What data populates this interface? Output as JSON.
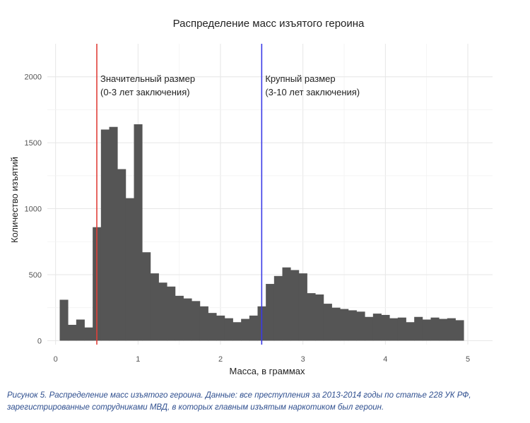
{
  "chart_data": {
    "type": "bar",
    "title": "Распределение масс изъятого героина",
    "xlabel": "Масса, в граммах",
    "ylabel": "Количество изъятий",
    "xlim": [
      -0.1,
      5.3
    ],
    "ylim": [
      -30,
      2250
    ],
    "xticks": [
      0,
      1,
      2,
      3,
      4,
      5
    ],
    "yticks": [
      0,
      500,
      1000,
      1500,
      2000
    ],
    "grid": true,
    "bin_width": 0.1,
    "x": [
      0.1,
      0.2,
      0.3,
      0.4,
      0.5,
      0.6,
      0.7,
      0.8,
      0.9,
      1.0,
      1.1,
      1.2,
      1.3,
      1.4,
      1.5,
      1.6,
      1.7,
      1.8,
      1.9,
      2.0,
      2.1,
      2.2,
      2.3,
      2.4,
      2.5,
      2.6,
      2.7,
      2.8,
      2.9,
      3.0,
      3.1,
      3.2,
      3.3,
      3.4,
      3.5,
      3.6,
      3.7,
      3.8,
      3.9,
      4.0,
      4.1,
      4.2,
      4.3,
      4.4,
      4.5,
      4.6,
      4.7,
      4.8,
      4.9
    ],
    "values": [
      310,
      120,
      160,
      100,
      860,
      1600,
      1620,
      1300,
      1080,
      1640,
      670,
      510,
      440,
      410,
      340,
      320,
      300,
      260,
      210,
      190,
      170,
      140,
      165,
      190,
      260,
      430,
      490,
      555,
      535,
      510,
      360,
      350,
      280,
      250,
      240,
      230,
      220,
      180,
      205,
      195,
      170,
      175,
      140,
      180,
      160,
      175,
      165,
      170,
      155
    ],
    "bar_color": "#555555",
    "reference_lines": [
      {
        "x": 0.5,
        "color": "#e0403a",
        "label_line1": "Значительный размер",
        "label_line2": "(0-3 лет заключения)"
      },
      {
        "x": 2.5,
        "color": "#3b3be6",
        "label_line1": "Крупный размер",
        "label_line2": "(3-10 лет заключения)"
      }
    ]
  },
  "caption": {
    "line1": "Рисунок 5. Распределение масс изъятого героина. Данные: все преступления за 2013-2014 годы по статье 228 УК РФ,",
    "line2": "зарегистрированные сотрудниками МВД, в которых главным изъятым наркотиком был героин."
  }
}
